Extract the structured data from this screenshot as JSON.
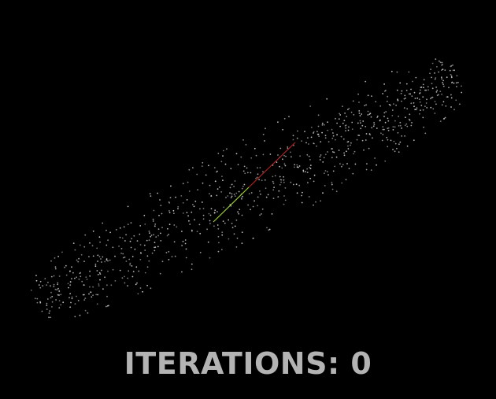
{
  "page": {
    "background": "#000000"
  },
  "status": {
    "iterations_label": "ITERATIONS:",
    "iterations_value": "0",
    "text_color": "#b3b3b3"
  },
  "visualization": {
    "point_count": 900,
    "point_color": "#c8c8c8",
    "vector_a_color": "#9acd32",
    "vector_b_color": "#b22222"
  }
}
